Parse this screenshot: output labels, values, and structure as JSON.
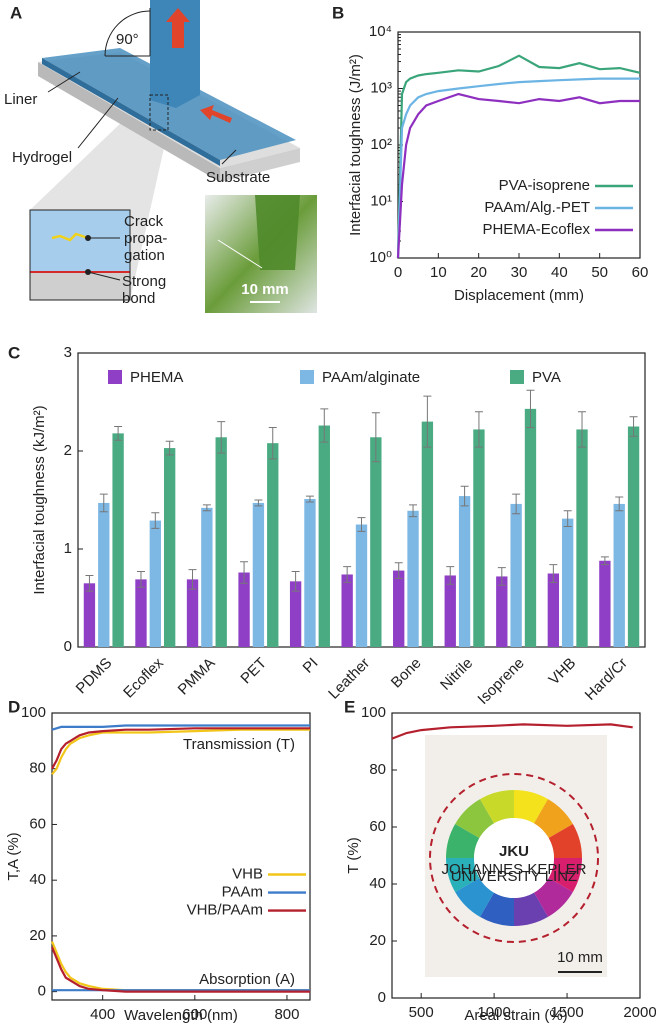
{
  "panel_a": {
    "panel": "A",
    "angle": "90°",
    "labels": [
      "Liner",
      "Hydrogel",
      "Substrate"
    ],
    "crack": [
      "Crack",
      "propa-",
      "gation"
    ],
    "bond": [
      "Strong",
      "bond"
    ],
    "scale_bar": "10 mm"
  },
  "chart_data": [
    {
      "type": "line",
      "panel": "B",
      "x_label": "Displacement (mm)",
      "y_label": "Interfacial toughness (J/m²)",
      "x": [
        0,
        1,
        2,
        3,
        5,
        7,
        10,
        15,
        20,
        25,
        30,
        35,
        40,
        45,
        50,
        55,
        60
      ],
      "xlim": [
        0,
        60
      ],
      "xticks": [
        0,
        10,
        20,
        30,
        40,
        50,
        60
      ],
      "ylim": [
        1,
        10000
      ],
      "log_y": true,
      "yticks": [
        {
          "value": 1,
          "label": "10⁰"
        },
        {
          "value": 10,
          "label": "10¹"
        },
        {
          "value": 100,
          "label": "10²"
        },
        {
          "value": 1000,
          "label": "10³"
        },
        {
          "value": 10000,
          "label": "10⁴"
        }
      ],
      "legend": "lower right",
      "series": [
        {
          "name": "PVA-isoprene",
          "color": "#3aa57a",
          "values": [
            1,
            800,
            1300,
            1500,
            1700,
            1800,
            1900,
            2100,
            2000,
            2500,
            3800,
            2400,
            2300,
            2800,
            2200,
            2300,
            1900
          ]
        },
        {
          "name": "PAAm/Alg.-PET",
          "color": "#6cb4e4",
          "values": [
            1,
            200,
            350,
            500,
            700,
            800,
            900,
            1000,
            1100,
            1200,
            1300,
            1350,
            1400,
            1450,
            1500,
            1500,
            1500
          ]
        },
        {
          "name": "PHEMA-Ecoflex",
          "color": "#8e2fc0",
          "values": [
            1,
            20,
            100,
            200,
            350,
            500,
            600,
            800,
            650,
            600,
            550,
            650,
            600,
            700,
            550,
            600,
            600
          ]
        }
      ]
    },
    {
      "type": "bar",
      "panel": "C",
      "y_label": "Interfacial toughness (kJ/m²)",
      "categories": [
        "PDMS",
        "Ecoflex",
        "PMMA",
        "PET",
        "PI",
        "Leather",
        "Bone",
        "Nitrile",
        "Isoprene",
        "VHB",
        "Hard/Cr"
      ],
      "ylim": [
        0,
        3
      ],
      "yticks": [
        0,
        1,
        2,
        3
      ],
      "legend": "top",
      "series": [
        {
          "name": "PHEMA",
          "color": "#8e3fc6",
          "values": [
            0.65,
            0.69,
            0.69,
            0.76,
            0.67,
            0.74,
            0.78,
            0.73,
            0.72,
            0.75,
            0.88
          ],
          "errors": [
            0.08,
            0.08,
            0.1,
            0.11,
            0.1,
            0.08,
            0.08,
            0.09,
            0.09,
            0.09,
            0.04
          ]
        },
        {
          "name": "PAAm/alginate",
          "color": "#7db7e3",
          "values": [
            1.47,
            1.29,
            1.42,
            1.47,
            1.51,
            1.25,
            1.39,
            1.54,
            1.46,
            1.31,
            1.46
          ],
          "errors": [
            0.09,
            0.08,
            0.03,
            0.03,
            0.03,
            0.07,
            0.06,
            0.1,
            0.1,
            0.08,
            0.07
          ]
        },
        {
          "name": "PVA",
          "color": "#4aab83",
          "values": [
            2.18,
            2.03,
            2.14,
            2.08,
            2.26,
            2.14,
            2.3,
            2.22,
            2.43,
            2.22,
            2.25
          ],
          "errors": [
            0.07,
            0.07,
            0.16,
            0.16,
            0.17,
            0.25,
            0.26,
            0.18,
            0.19,
            0.18,
            0.1
          ]
        }
      ]
    },
    {
      "type": "line",
      "panel": "D",
      "x_label": "Wavelength (nm)",
      "y_label": "T,A (%)",
      "annotations": [
        "Transmission (T)",
        "Absorption (A)"
      ],
      "x": [
        290,
        300,
        310,
        320,
        330,
        340,
        350,
        370,
        400,
        450,
        500,
        600,
        700,
        800,
        850
      ],
      "xlim": [
        290,
        850
      ],
      "xticks": [
        400,
        600,
        800
      ],
      "ylim": [
        -3,
        100
      ],
      "yticks": [
        0,
        20,
        40,
        60,
        80,
        100
      ],
      "legend": "center right",
      "series": [
        {
          "name": "VHB",
          "color": "#f2c618",
          "values": [
            78,
            80,
            84,
            87,
            89,
            90,
            91,
            92,
            93,
            93,
            93,
            93.5,
            94,
            94,
            94
          ],
          "absorption": [
            18,
            14,
            10,
            7,
            5,
            4,
            3,
            2,
            1,
            0.5,
            0.5,
            0.5,
            0.5,
            0.5,
            0.5
          ]
        },
        {
          "name": "PAAm",
          "color": "#3d7cc9",
          "values": [
            94,
            94.5,
            95,
            95,
            95,
            95,
            95,
            95,
            95,
            95.5,
            95.5,
            95.5,
            95.5,
            95.5,
            95.5
          ],
          "absorption": [
            0.5,
            0.5,
            0.5,
            0.5,
            0.5,
            0.5,
            0.5,
            0.5,
            0.5,
            0.5,
            0.5,
            0.5,
            0.5,
            0.5,
            0.5
          ]
        },
        {
          "name": "VHB/PAAm",
          "color": "#b5202e",
          "values": [
            80,
            83,
            87,
            89,
            90,
            91,
            92,
            93,
            93.5,
            94,
            94,
            94.5,
            94.5,
            94.5,
            94.5
          ],
          "absorption": [
            16,
            12,
            8,
            5,
            4,
            3,
            2,
            1,
            0.5,
            0,
            0,
            0,
            0,
            0,
            0
          ]
        }
      ]
    },
    {
      "type": "line",
      "panel": "E",
      "x_label": "Areal strain (%)",
      "y_label": "T (%)",
      "inset": {
        "logo": "JKU",
        "logo_subtitle": [
          "JOHANNES KEPLER",
          "UNIVERSITY LINZ"
        ],
        "scale_bar": "10 mm"
      },
      "x": [
        300,
        400,
        500,
        700,
        1000,
        1200,
        1500,
        1800,
        1950
      ],
      "xlim": [
        300,
        2000
      ],
      "xticks": [
        500,
        1000,
        1500,
        2000
      ],
      "ylim": [
        0,
        100
      ],
      "yticks": [
        0,
        20,
        40,
        60,
        80,
        100
      ],
      "series": [
        {
          "color": "#b5202e",
          "values": [
            91,
            93,
            94,
            95,
            95.5,
            96,
            95.5,
            96,
            95
          ]
        }
      ]
    }
  ]
}
